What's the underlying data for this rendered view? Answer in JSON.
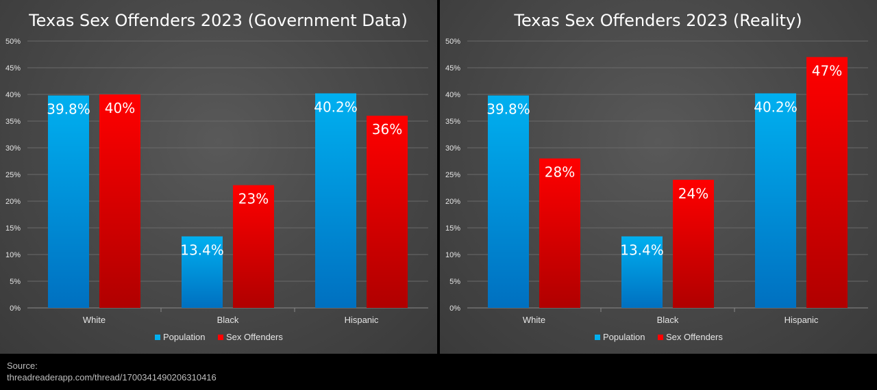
{
  "colors": {
    "population_top": "#00b0f0",
    "population_bottom": "#0070c0",
    "offenders_top": "#ff0000",
    "offenders_bottom": "#b00000",
    "gridline": "#6a6a6a",
    "text": "#ffffff",
    "axis_text": "#e6e6e6"
  },
  "chart_data": [
    {
      "type": "bar",
      "title": "Texas Sex Offenders 2023 (Government Data)",
      "categories": [
        "White",
        "Black",
        "Hispanic"
      ],
      "series": [
        {
          "name": "Population",
          "values": [
            39.8,
            13.4,
            40.2
          ],
          "labels": [
            "39.8%",
            "13.4%",
            "40.2%"
          ]
        },
        {
          "name": "Sex Offenders",
          "values": [
            40,
            23,
            36
          ],
          "labels": [
            "40%",
            "23%",
            "36%"
          ]
        }
      ],
      "ylim": [
        0,
        50
      ],
      "yticks": [
        "0%",
        "5%",
        "10%",
        "15%",
        "20%",
        "25%",
        "30%",
        "35%",
        "40%",
        "45%",
        "50%"
      ],
      "grid": true,
      "legend": "bottom"
    },
    {
      "type": "bar",
      "title": "Texas Sex Offenders 2023 (Reality)",
      "categories": [
        "White",
        "Black",
        "Hispanic"
      ],
      "series": [
        {
          "name": "Population",
          "values": [
            39.8,
            13.4,
            40.2
          ],
          "labels": [
            "39.8%",
            "13.4%",
            "40.2%"
          ]
        },
        {
          "name": "Sex Offenders",
          "values": [
            28,
            24,
            47
          ],
          "labels": [
            "28%",
            "24%",
            "47%"
          ]
        }
      ],
      "ylim": [
        0,
        50
      ],
      "yticks": [
        "0%",
        "5%",
        "10%",
        "15%",
        "20%",
        "25%",
        "30%",
        "35%",
        "40%",
        "45%",
        "50%"
      ],
      "grid": true,
      "legend": "bottom"
    }
  ],
  "source": {
    "label": "Source:",
    "url": "threadreaderapp.com/thread/1700341490206310416"
  }
}
